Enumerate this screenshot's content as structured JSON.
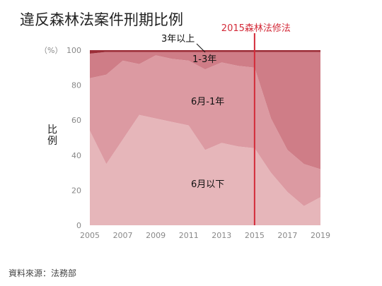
{
  "title": "違反森林法案件刑期比例",
  "source": "資料來源：法務部",
  "chart_data": {
    "type": "area",
    "stacked": true,
    "ylabel": "比例",
    "yunit": "（%）",
    "ylim": [
      0,
      100
    ],
    "yticks": [
      0,
      20,
      40,
      60,
      80,
      100
    ],
    "x": [
      2005,
      2006,
      2007,
      2008,
      2009,
      2010,
      2011,
      2012,
      2013,
      2014,
      2015,
      2016,
      2017,
      2018,
      2019
    ],
    "xticks": [
      2005,
      2007,
      2009,
      2011,
      2013,
      2015,
      2017,
      2019
    ],
    "series": [
      {
        "name": "6月以下",
        "color": "#e6b6ba",
        "values": [
          54,
          35,
          49,
          63,
          61,
          59,
          57,
          43,
          47,
          45,
          44,
          30,
          19,
          11,
          16
        ]
      },
      {
        "name": "6月-1年",
        "color": "#dc9aa2",
        "values": [
          30,
          51,
          45,
          29,
          36,
          36,
          37,
          46,
          46,
          46,
          46,
          31,
          24,
          24,
          16
        ]
      },
      {
        "name": "1-3年",
        "color": "#cf7d87",
        "values": [
          14,
          13,
          5,
          7,
          2,
          4,
          5,
          10,
          6,
          8,
          9,
          38,
          56,
          64,
          67
        ]
      },
      {
        "name": "3年以上",
        "color": "#9b2e38",
        "values": [
          2,
          1,
          1,
          1,
          1,
          1,
          1,
          1,
          1,
          1,
          1,
          1,
          1,
          1,
          1
        ]
      }
    ],
    "annotation": {
      "text": "2015森林法修法",
      "x": 2015,
      "color": "#d32a38"
    },
    "labels": [
      "3年以上",
      "1-3年",
      "6月-1年",
      "6月以下"
    ]
  }
}
